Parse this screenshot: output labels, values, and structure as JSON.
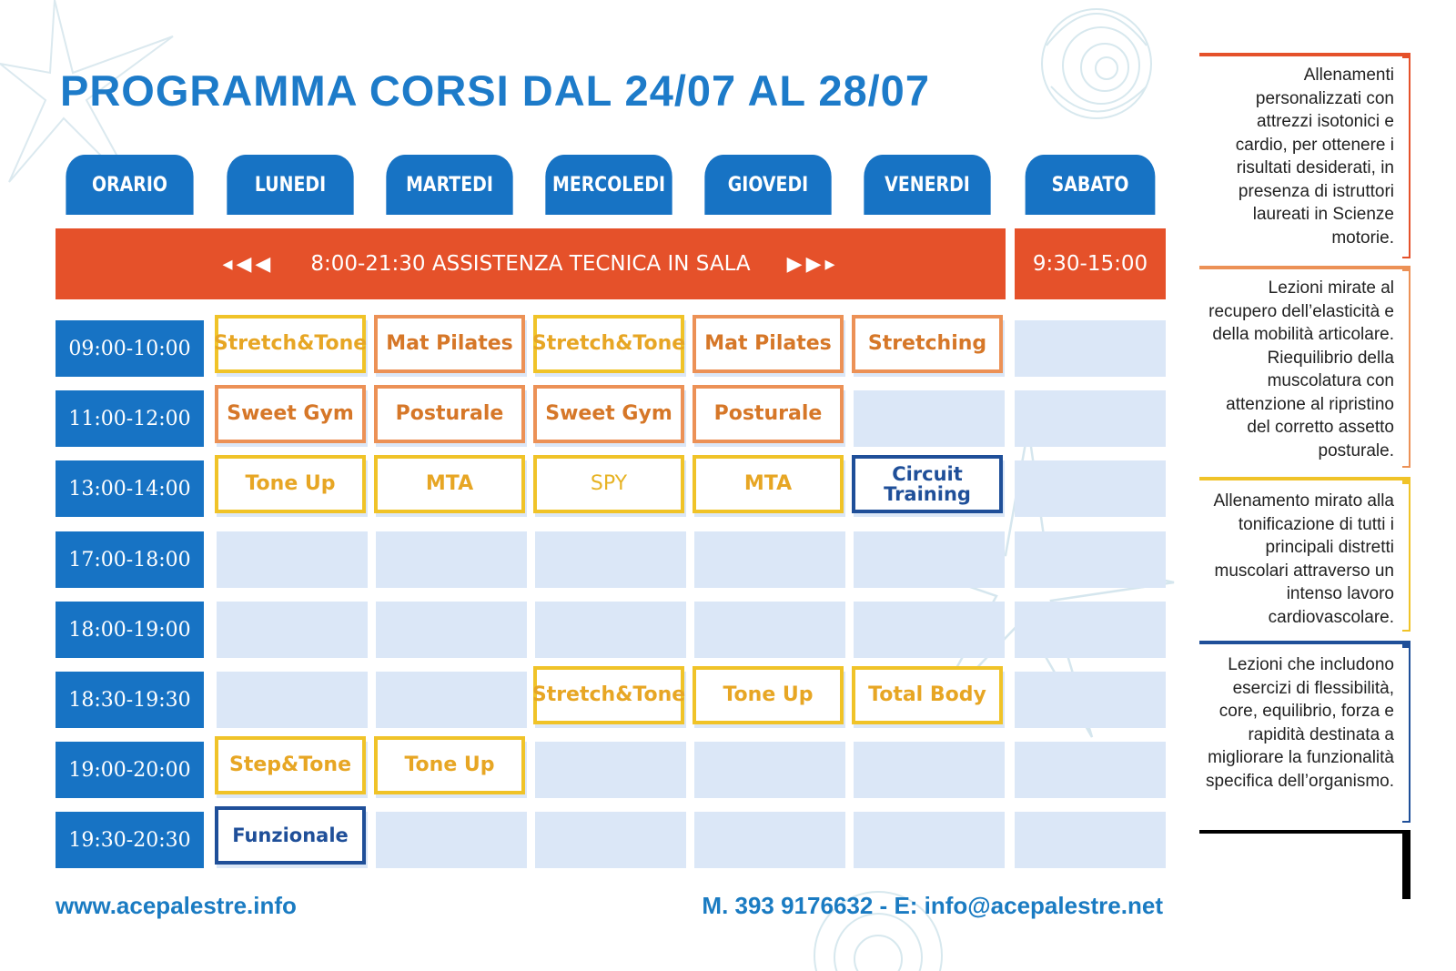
{
  "title": "PROGRAMMA CORSI DAL 24/07 AL 28/07",
  "header": {
    "orario": "ORARIO",
    "days": [
      "LUNEDI",
      "MARTEDI",
      "MERCOLEDI",
      "GIOVEDI",
      "VENERDI",
      "SABATO"
    ]
  },
  "banner": {
    "left_arrows": "◂◀◀",
    "text": "8:00-21:30 ASSISTENZA TECNICA IN SALA",
    "right_arrows": "▶▶▸",
    "saturday": "9:30-15:00"
  },
  "times": [
    "09:00-10:00",
    "11:00-12:00",
    "13:00-14:00",
    "17:00-18:00",
    "18:00-19:00",
    "18:30-19:30",
    "19:00-20:00",
    "19:30-20:30"
  ],
  "courses": {
    "r0": [
      "Stretch&Tone",
      "Mat Pilates",
      "Stretch&Tone",
      "Mat Pilates",
      "Stretching"
    ],
    "r1": [
      "Sweet Gym",
      "Posturale",
      "Sweet Gym",
      "Posturale"
    ],
    "r2": [
      "Tone Up",
      "MTA",
      "SPY",
      "MTA",
      "Circuit Training"
    ],
    "r5": [
      "Stretch&Tone",
      "Tone Up",
      "Total Body"
    ],
    "r6": [
      "Step&Tone",
      "Tone Up"
    ],
    "r7": [
      "Funzionale"
    ]
  },
  "footer": {
    "website": "www.acepalestre.info",
    "contacts": "M. 393 9176632  - E: info@acepalestre.net"
  },
  "sidebar": {
    "descriptions": [
      "Allenamenti personalizzati con attrezzi isotonici e cardio, per ottenere i risultati desiderati, in presenza di istruttori laureati in Scienze motorie.",
      "Lezioni mirate al recupero dell’elasticità e della mobilità articolare. Riequilibrio della muscolatura con attenzione al ripristino del corretto assetto posturale.",
      "Allenamento mirato alla tonificazione di tutti i principali distretti muscolari attraverso un intenso lavoro cardiovascolare.",
      "Lezioni che includono esercizi di flessibilità, core, equilibrio, forza e rapidità destinata a migliorare la funzionalità specifica dell’organismo."
    ]
  },
  "colors": {
    "primary_blue": "#1773c4",
    "banner_orange": "#e5512a",
    "cell_bg": "#dbe7f7",
    "course_yellow": "#f0c328",
    "course_orange": "#ec9156",
    "course_navy": "#1f4f99"
  }
}
